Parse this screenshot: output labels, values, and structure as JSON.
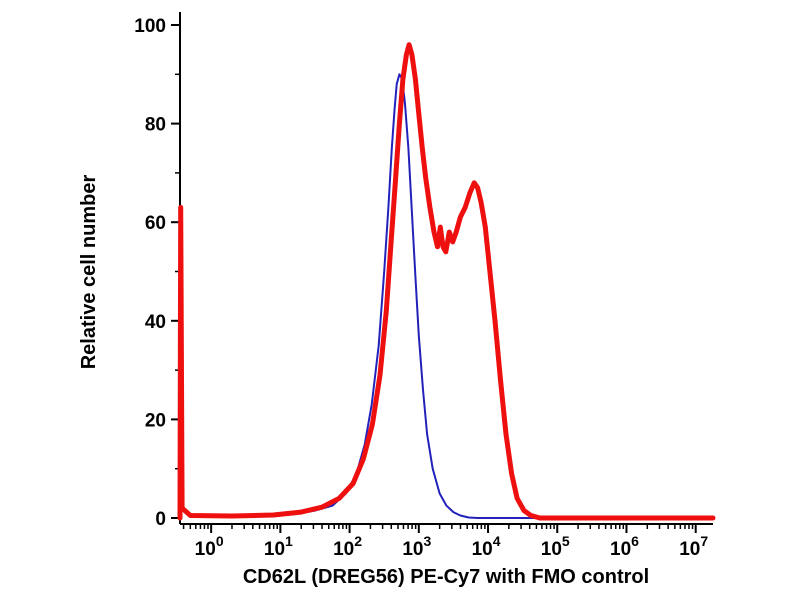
{
  "figure": {
    "background": "#ffffff"
  },
  "chart_data": {
    "type": "line",
    "chart_kind": "flow-cytometry-histogram",
    "title": "",
    "xlabel": "CD62L (DREG56) PE-Cy7 with FMO control",
    "ylabel": "Relative cell number",
    "x_scale": "log10",
    "x_tick_base": "10",
    "xlim_log": [
      -0.45,
      7.25
    ],
    "ylim": [
      0,
      100
    ],
    "x_major_tick_exponents": [
      0,
      1,
      2,
      3,
      4,
      5,
      6,
      7
    ],
    "y_major_ticks": [
      0,
      20,
      40,
      60,
      80,
      100
    ],
    "y_minor_step": 10,
    "grid": false,
    "legend": "none",
    "axis_color": "#000000",
    "series": [
      {
        "name": "FMO control",
        "color": "#2222bb",
        "stroke_width": 2,
        "points": [
          [
            -0.45,
            0
          ],
          [
            -0.44,
            63
          ],
          [
            -0.42,
            2
          ],
          [
            -0.3,
            0.5
          ],
          [
            0.2,
            0.4
          ],
          [
            0.8,
            0.5
          ],
          [
            1.2,
            0.8
          ],
          [
            1.5,
            1.5
          ],
          [
            1.75,
            2.5
          ],
          [
            1.95,
            5
          ],
          [
            2.1,
            9
          ],
          [
            2.22,
            15
          ],
          [
            2.32,
            23
          ],
          [
            2.42,
            35
          ],
          [
            2.5,
            50
          ],
          [
            2.56,
            63
          ],
          [
            2.61,
            75
          ],
          [
            2.65,
            83
          ],
          [
            2.68,
            88
          ],
          [
            2.72,
            90
          ],
          [
            2.76,
            89
          ],
          [
            2.8,
            84
          ],
          [
            2.85,
            75
          ],
          [
            2.9,
            62
          ],
          [
            2.95,
            49
          ],
          [
            3.0,
            37
          ],
          [
            3.06,
            26
          ],
          [
            3.12,
            17
          ],
          [
            3.2,
            10
          ],
          [
            3.3,
            5
          ],
          [
            3.4,
            2.5
          ],
          [
            3.5,
            1.2
          ],
          [
            3.6,
            0.5
          ],
          [
            3.72,
            0.1
          ],
          [
            3.85,
            0
          ],
          [
            7.25,
            0
          ]
        ]
      },
      {
        "name": "CD62L (DREG56) PE-Cy7",
        "color": "#ee0f0f",
        "stroke_width": 5,
        "points": [
          [
            -0.45,
            0
          ],
          [
            -0.44,
            63
          ],
          [
            -0.42,
            2
          ],
          [
            -0.3,
            0.5
          ],
          [
            0.3,
            0.4
          ],
          [
            0.9,
            0.6
          ],
          [
            1.3,
            1.2
          ],
          [
            1.6,
            2.2
          ],
          [
            1.85,
            4
          ],
          [
            2.05,
            7
          ],
          [
            2.2,
            12
          ],
          [
            2.33,
            19
          ],
          [
            2.44,
            29
          ],
          [
            2.53,
            42
          ],
          [
            2.6,
            56
          ],
          [
            2.66,
            68
          ],
          [
            2.72,
            80
          ],
          [
            2.77,
            89
          ],
          [
            2.82,
            94
          ],
          [
            2.86,
            96
          ],
          [
            2.9,
            94
          ],
          [
            2.95,
            89
          ],
          [
            3.0,
            82
          ],
          [
            3.05,
            75
          ],
          [
            3.1,
            69
          ],
          [
            3.16,
            63
          ],
          [
            3.22,
            58
          ],
          [
            3.27,
            55
          ],
          [
            3.31,
            59
          ],
          [
            3.35,
            55
          ],
          [
            3.39,
            54
          ],
          [
            3.44,
            58
          ],
          [
            3.49,
            56
          ],
          [
            3.54,
            58
          ],
          [
            3.6,
            61
          ],
          [
            3.67,
            63
          ],
          [
            3.74,
            66
          ],
          [
            3.8,
            68
          ],
          [
            3.85,
            67
          ],
          [
            3.9,
            64
          ],
          [
            3.96,
            59
          ],
          [
            4.02,
            51
          ],
          [
            4.1,
            40
          ],
          [
            4.18,
            28
          ],
          [
            4.26,
            17
          ],
          [
            4.34,
            9
          ],
          [
            4.42,
            4
          ],
          [
            4.52,
            1.5
          ],
          [
            4.62,
            0.5
          ],
          [
            4.75,
            0
          ],
          [
            7.25,
            0
          ]
        ]
      }
    ]
  }
}
